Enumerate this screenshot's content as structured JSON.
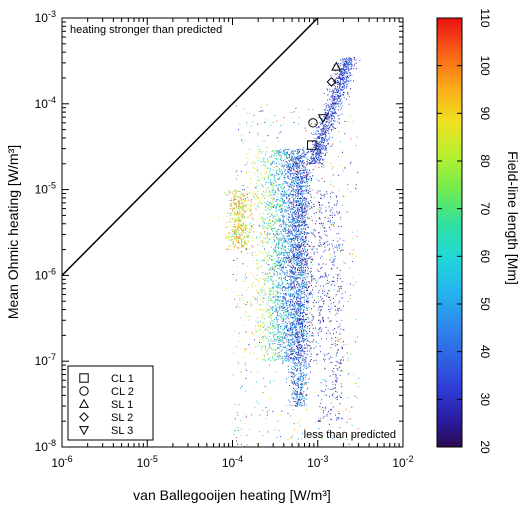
{
  "chart_data": {
    "type": "scatter",
    "title": "",
    "xlabel": "van Ballegooijen heating [W/m³]",
    "ylabel": "Mean Ohmic heating [W/m³]",
    "xscale": "log",
    "yscale": "log",
    "xlim": [
      1e-06,
      0.01
    ],
    "ylim": [
      1e-08,
      0.001
    ],
    "x_ticks": [
      {
        "base": "10",
        "exp": "-6"
      },
      {
        "base": "10",
        "exp": "-5"
      },
      {
        "base": "10",
        "exp": "-4"
      },
      {
        "base": "10",
        "exp": "-3"
      },
      {
        "base": "10",
        "exp": "-2"
      }
    ],
    "y_ticks": [
      {
        "base": "10",
        "exp": "-8"
      },
      {
        "base": "10",
        "exp": "-7"
      },
      {
        "base": "10",
        "exp": "-6"
      },
      {
        "base": "10",
        "exp": "-5"
      },
      {
        "base": "10",
        "exp": "-4"
      },
      {
        "base": "10",
        "exp": "-3"
      }
    ],
    "annotations": {
      "upper_left": "heating stronger than predicted",
      "lower_right": "less than predicted"
    },
    "reference_line": {
      "description": "y = x",
      "x": [
        1e-06,
        0.001
      ],
      "y": [
        1e-06,
        0.001
      ]
    },
    "colorbar": {
      "label": "Field-line length [Mm]",
      "min": 20,
      "max": 110,
      "ticks": [
        "20",
        "30",
        "40",
        "50",
        "60",
        "70",
        "80",
        "90",
        "100",
        "110"
      ],
      "colormap": "rainbow"
    },
    "legend": {
      "placement": "bottom-left",
      "entries": [
        {
          "label": "CL 1",
          "marker": "square"
        },
        {
          "label": "CL 2",
          "marker": "circle"
        },
        {
          "label": "SL 1",
          "marker": "triangle-up"
        },
        {
          "label": "SL 2",
          "marker": "diamond"
        },
        {
          "label": "SL 3",
          "marker": "triangle-down"
        }
      ]
    },
    "highlighted_points": [
      {
        "label": "CL 1",
        "marker": "square",
        "x": 0.00085,
        "y": 3.3e-05
      },
      {
        "label": "CL 2",
        "marker": "circle",
        "x": 0.00088,
        "y": 6e-05
      },
      {
        "label": "SL 1",
        "marker": "triangle-up",
        "x": 0.00165,
        "y": 0.00027
      },
      {
        "label": "SL 2",
        "marker": "diamond",
        "x": 0.00145,
        "y": 0.00018
      },
      {
        "label": "SL 3",
        "marker": "triangle-down",
        "x": 0.00115,
        "y": 6.8e-05
      }
    ],
    "point_clusters": [
      {
        "description": "main column",
        "x_center": 0.0004,
        "x_spread_decades": 0.35,
        "y_range": [
          1e-07,
          3e-05
        ],
        "length_range": [
          25,
          90
        ]
      },
      {
        "description": "central spine",
        "x_center": 0.0006,
        "x_spread_decades": 0.12,
        "y_range": [
          3e-08,
          3e-05
        ],
        "length_range": [
          20,
          60
        ]
      },
      {
        "description": "upper tail",
        "x_range": [
          0.0009,
          0.0023
        ],
        "y_range": [
          2e-05,
          0.00035
        ],
        "length_range": [
          22,
          45
        ]
      },
      {
        "description": "left hook",
        "x_center": 0.00012,
        "x_spread_decades": 0.15,
        "y_range": [
          2e-06,
          1e-05
        ],
        "length_range": [
          70,
          105
        ]
      },
      {
        "description": "right sparse tail",
        "x_range": [
          0.001,
          0.002
        ],
        "y_range": [
          2e-08,
          1e-05
        ],
        "length_range": [
          20,
          40
        ]
      },
      {
        "description": "diffuse halo",
        "x_range": [
          0.0001,
          0.003
        ],
        "y_range": [
          1e-08,
          0.0001
        ],
        "length_range": [
          20,
          110
        ]
      }
    ]
  }
}
